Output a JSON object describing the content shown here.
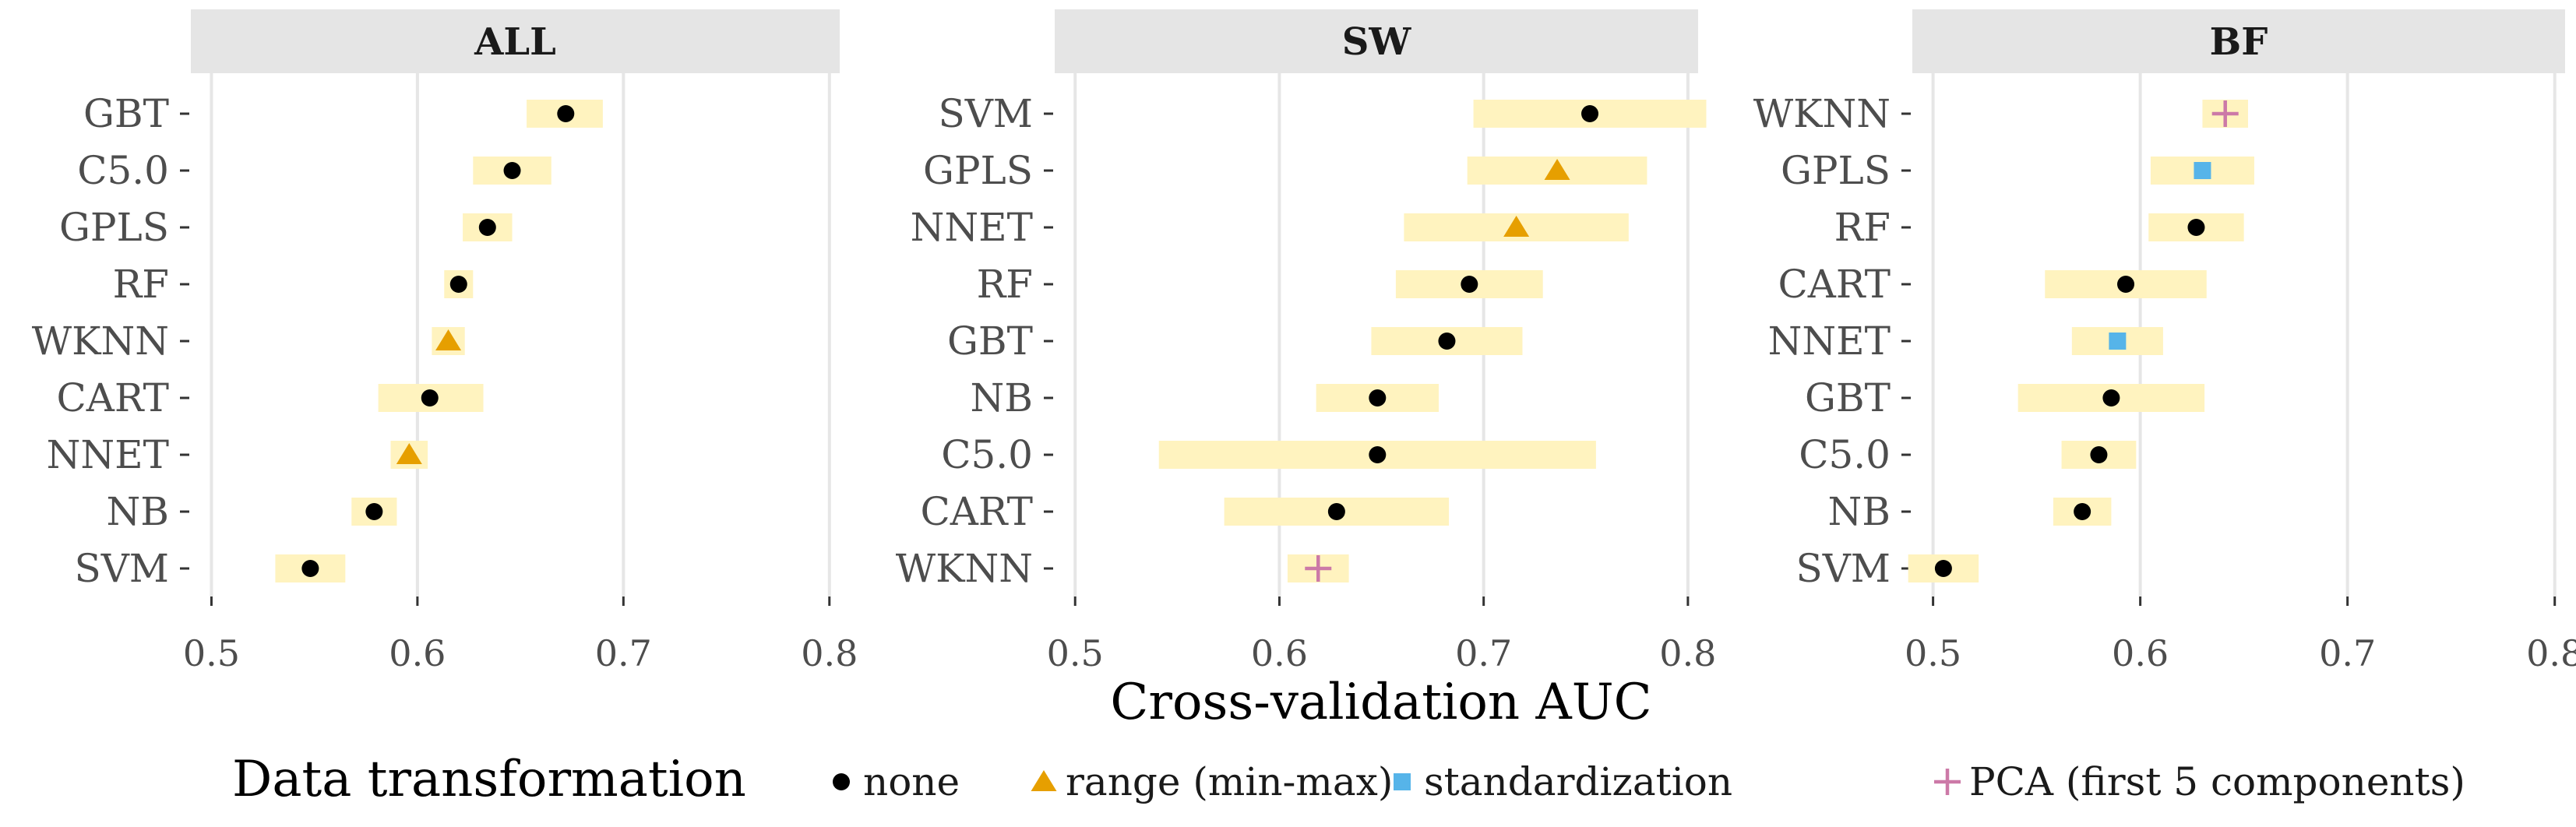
{
  "chart_data": {
    "type": "scatter",
    "xlabel": "Cross-validation AUC",
    "xlim": [
      0.49,
      0.805
    ],
    "xticks": [
      0.5,
      0.6,
      0.7,
      0.8
    ],
    "xtick_labels": [
      "0.5",
      "0.6",
      "0.7",
      "0.8"
    ],
    "grid": true,
    "legend_position": "bottom",
    "colors": {
      "none": "#000000",
      "range": "#E69F00",
      "standardization": "#56B4E9",
      "pca": "#CC79A7",
      "band": "#FFF3BF",
      "strip": "#E5E5E5",
      "grid": "#E6E6E6"
    },
    "legend": {
      "title": "Data transformation",
      "items": [
        {
          "key": "none",
          "label": "none",
          "shape": "circle"
        },
        {
          "key": "range",
          "label": "range (min-max)",
          "shape": "triangle"
        },
        {
          "key": "standardization",
          "label": "standardization",
          "shape": "square"
        },
        {
          "key": "pca",
          "label": "PCA (first 5 components)",
          "shape": "plus"
        }
      ]
    },
    "panels": [
      {
        "title": "ALL",
        "rows": [
          {
            "label": "GBT",
            "value": 0.672,
            "low": 0.653,
            "high": 0.69,
            "transform": "none"
          },
          {
            "label": "C5.0",
            "value": 0.646,
            "low": 0.627,
            "high": 0.665,
            "transform": "none"
          },
          {
            "label": "GPLS",
            "value": 0.634,
            "low": 0.622,
            "high": 0.646,
            "transform": "none"
          },
          {
            "label": "RF",
            "value": 0.62,
            "low": 0.613,
            "high": 0.627,
            "transform": "none"
          },
          {
            "label": "WKNN",
            "value": 0.615,
            "low": 0.607,
            "high": 0.623,
            "transform": "range"
          },
          {
            "label": "CART",
            "value": 0.606,
            "low": 0.581,
            "high": 0.632,
            "transform": "none"
          },
          {
            "label": "NNET",
            "value": 0.596,
            "low": 0.587,
            "high": 0.605,
            "transform": "range"
          },
          {
            "label": "NB",
            "value": 0.579,
            "low": 0.568,
            "high": 0.59,
            "transform": "none"
          },
          {
            "label": "SVM",
            "value": 0.548,
            "low": 0.531,
            "high": 0.565,
            "transform": "none"
          }
        ]
      },
      {
        "title": "SW",
        "rows": [
          {
            "label": "SVM",
            "value": 0.752,
            "low": 0.695,
            "high": 0.809,
            "transform": "none"
          },
          {
            "label": "GPLS",
            "value": 0.736,
            "low": 0.692,
            "high": 0.78,
            "transform": "range"
          },
          {
            "label": "NNET",
            "value": 0.716,
            "low": 0.661,
            "high": 0.771,
            "transform": "range"
          },
          {
            "label": "RF",
            "value": 0.693,
            "low": 0.657,
            "high": 0.729,
            "transform": "none"
          },
          {
            "label": "GBT",
            "value": 0.682,
            "low": 0.645,
            "high": 0.719,
            "transform": "none"
          },
          {
            "label": "NB",
            "value": 0.648,
            "low": 0.618,
            "high": 0.678,
            "transform": "none"
          },
          {
            "label": "C5.0",
            "value": 0.648,
            "low": 0.541,
            "high": 0.755,
            "transform": "none"
          },
          {
            "label": "CART",
            "value": 0.628,
            "low": 0.573,
            "high": 0.683,
            "transform": "none"
          },
          {
            "label": "WKNN",
            "value": 0.619,
            "low": 0.604,
            "high": 0.634,
            "transform": "pca"
          }
        ]
      },
      {
        "title": "BF",
        "rows": [
          {
            "label": "WKNN",
            "value": 0.641,
            "low": 0.63,
            "high": 0.652,
            "transform": "pca"
          },
          {
            "label": "GPLS",
            "value": 0.63,
            "low": 0.605,
            "high": 0.655,
            "transform": "standardization"
          },
          {
            "label": "RF",
            "value": 0.627,
            "low": 0.604,
            "high": 0.65,
            "transform": "none"
          },
          {
            "label": "CART",
            "value": 0.593,
            "low": 0.554,
            "high": 0.632,
            "transform": "none"
          },
          {
            "label": "NNET",
            "value": 0.589,
            "low": 0.567,
            "high": 0.611,
            "transform": "standardization"
          },
          {
            "label": "GBT",
            "value": 0.586,
            "low": 0.541,
            "high": 0.631,
            "transform": "none"
          },
          {
            "label": "C5.0",
            "value": 0.58,
            "low": 0.562,
            "high": 0.598,
            "transform": "none"
          },
          {
            "label": "NB",
            "value": 0.572,
            "low": 0.558,
            "high": 0.586,
            "transform": "none"
          },
          {
            "label": "SVM",
            "value": 0.505,
            "low": 0.488,
            "high": 0.522,
            "transform": "none"
          }
        ]
      }
    ]
  }
}
